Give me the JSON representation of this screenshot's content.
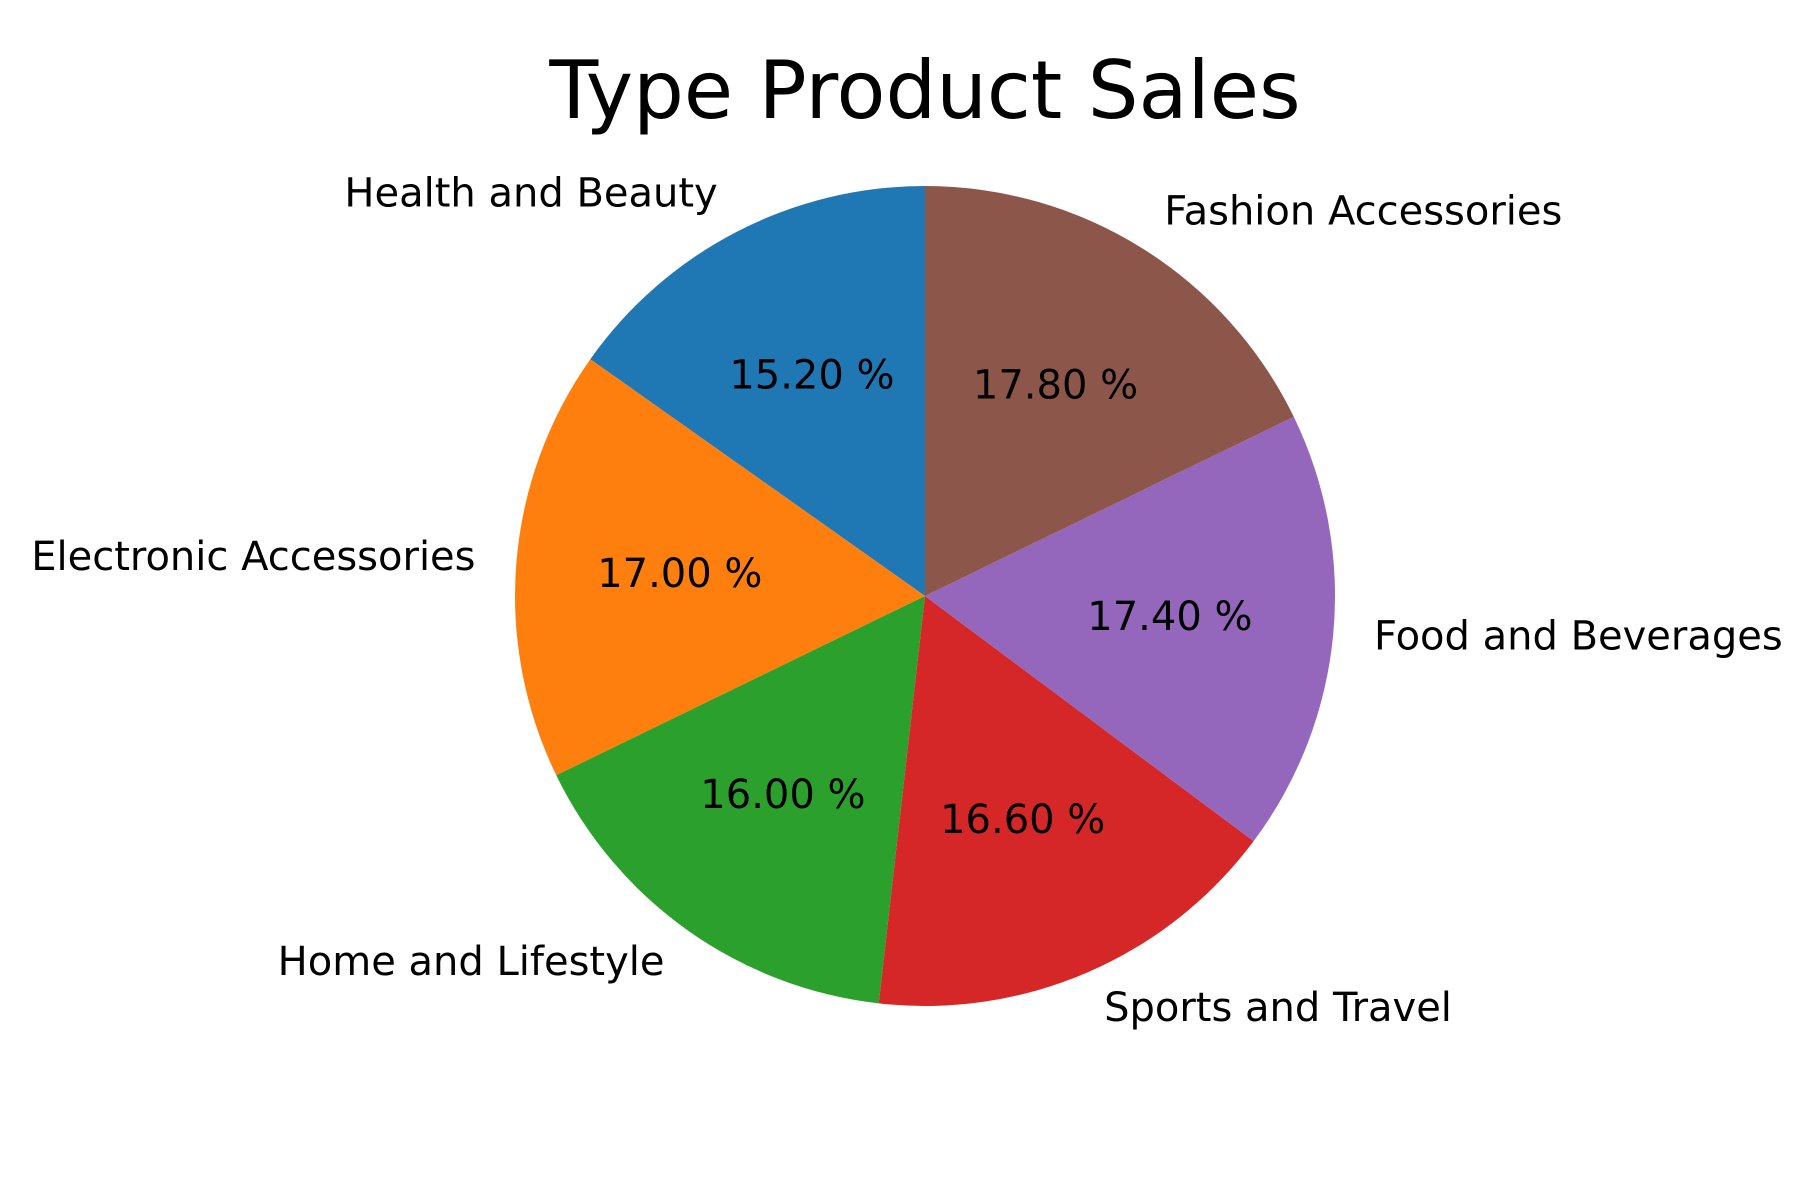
{
  "chart_data": {
    "type": "pie",
    "title": "Type Product Sales",
    "categories": [
      "Health and Beauty",
      "Electronic Accessories",
      "Home and Lifestyle",
      "Sports and Travel",
      "Food and Beverages",
      "Fashion Accessories"
    ],
    "values": [
      15.2,
      17.0,
      16.0,
      16.6,
      17.4,
      17.8
    ],
    "value_labels": [
      "15.20 %",
      "17.00 %",
      "16.00 %",
      "16.60 %",
      "17.40 %",
      "17.80 %"
    ],
    "colors": [
      "#1f77b4",
      "#ff7f0e",
      "#2ca02c",
      "#d62728",
      "#9467bd",
      "#8c564b"
    ],
    "start_angle_deg": 90,
    "direction": "counterclockwise",
    "legend": "none"
  }
}
